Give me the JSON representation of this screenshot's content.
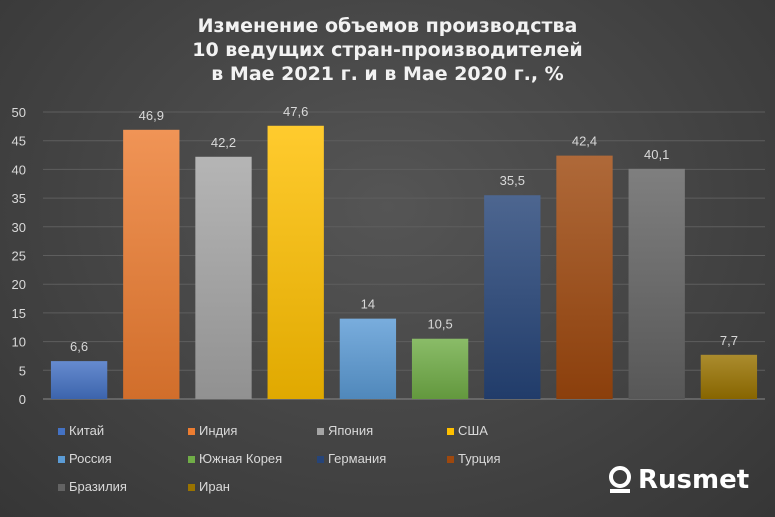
{
  "chart_data": {
    "type": "bar",
    "title_lines": [
      "Изменение объемов производства",
      "10 ведущих стран-производителей",
      "в Мае 2021 г. и в Мае 2020 г., %"
    ],
    "categories": [
      "Китай",
      "Индия",
      "Япония",
      "США",
      "Россия",
      "Южная Корея",
      "Германия",
      "Турция",
      "Бразилия",
      "Иран"
    ],
    "values": [
      6.6,
      46.9,
      42.2,
      47.6,
      14,
      10.5,
      35.5,
      42.4,
      40.1,
      7.7
    ],
    "value_labels": [
      "6,6",
      "46,9",
      "42,2",
      "47,6",
      "14",
      "10,5",
      "35,5",
      "42,4",
      "40,1",
      "7,7"
    ],
    "colors": [
      "#4472C4",
      "#ED7D31",
      "#A5A5A5",
      "#FFC000",
      "#5B9BD5",
      "#70AD47",
      "#264478",
      "#9E480E",
      "#636363",
      "#997300"
    ],
    "ylim": [
      0,
      50
    ],
    "yticks": [
      0,
      5,
      10,
      15,
      20,
      25,
      30,
      35,
      40,
      45,
      50
    ],
    "grid": true,
    "legend_position": "bottom-left",
    "xlabel": "",
    "ylabel": ""
  },
  "logo": {
    "text": "Rusmet"
  }
}
